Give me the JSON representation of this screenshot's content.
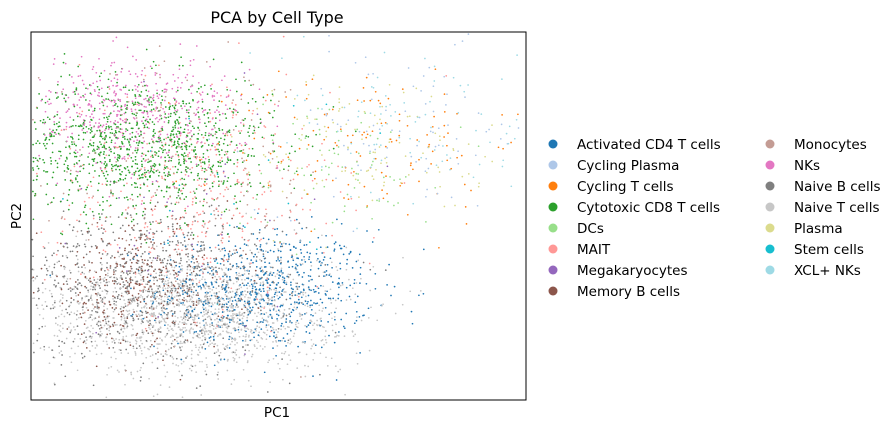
{
  "chart_data": {
    "type": "scatter",
    "title": "PCA by Cell Type",
    "xlabel": "PC1",
    "ylabel": "PC2",
    "xticks": [],
    "yticks": [],
    "xlim": [
      -6,
      8
    ],
    "ylim": [
      -6,
      5
    ],
    "grid": false,
    "legend_position": "right",
    "legend_columns": 2,
    "series": [
      {
        "name": "Activated CD4 T cells",
        "color": "#1f77b4",
        "clusters": [
          {
            "x": 0.6,
            "y": -2.7,
            "sx": 1.5,
            "sy": 0.9,
            "n": 700
          }
        ]
      },
      {
        "name": "Cycling Plasma",
        "color": "#aec7e8",
        "clusters": [
          {
            "x": 4.5,
            "y": 2.0,
            "sx": 2.0,
            "sy": 1.2,
            "n": 90
          }
        ]
      },
      {
        "name": "Cycling T cells",
        "color": "#ff7f0e",
        "clusters": [
          {
            "x": 3.5,
            "y": 1.7,
            "sx": 2.2,
            "sy": 1.2,
            "n": 130
          }
        ]
      },
      {
        "name": "Cytotoxic CD8 T cells",
        "color": "#2ca02c",
        "clusters": [
          {
            "x": -2.9,
            "y": 1.6,
            "sx": 1.9,
            "sy": 1.0,
            "n": 1100
          }
        ]
      },
      {
        "name": "DCs",
        "color": "#98df8a",
        "clusters": [
          {
            "x": 2.5,
            "y": 1.0,
            "sx": 1.5,
            "sy": 1.0,
            "n": 80
          }
        ]
      },
      {
        "name": "MAIT",
        "color": "#ff9896",
        "clusters": [
          {
            "x": -1.5,
            "y": 0.2,
            "sx": 2.0,
            "sy": 1.6,
            "n": 420
          }
        ]
      },
      {
        "name": "Megakaryocytes",
        "color": "#9467bd",
        "clusters": [
          {
            "x": -1.5,
            "y": -0.5,
            "sx": 2.5,
            "sy": 2.0,
            "n": 40
          }
        ]
      },
      {
        "name": "Memory B cells",
        "color": "#8c564b",
        "clusters": [
          {
            "x": -3.0,
            "y": -2.6,
            "sx": 1.4,
            "sy": 0.9,
            "n": 330
          }
        ]
      },
      {
        "name": "Monocytes",
        "color": "#c49c94",
        "clusters": [
          {
            "x": -2.0,
            "y": 0.5,
            "sx": 2.2,
            "sy": 1.7,
            "n": 200
          }
        ]
      },
      {
        "name": "NKs",
        "color": "#e377c2",
        "clusters": [
          {
            "x": -3.2,
            "y": 2.6,
            "sx": 1.6,
            "sy": 0.8,
            "n": 500
          }
        ]
      },
      {
        "name": "Naive B cells",
        "color": "#7f7f7f",
        "clusters": [
          {
            "x": -2.5,
            "y": -2.5,
            "sx": 2.0,
            "sy": 1.1,
            "n": 850
          }
        ]
      },
      {
        "name": "Naive T cells",
        "color": "#c7c7c7",
        "clusters": [
          {
            "x": -1.5,
            "y": -3.4,
            "sx": 2.2,
            "sy": 0.9,
            "n": 1500
          }
        ]
      },
      {
        "name": "Plasma",
        "color": "#dbdb8d",
        "clusters": [
          {
            "x": 3.8,
            "y": 1.6,
            "sx": 2.0,
            "sy": 1.1,
            "n": 110
          }
        ]
      },
      {
        "name": "Stem cells",
        "color": "#17becf",
        "clusters": [
          {
            "x": 0.0,
            "y": 0.0,
            "sx": 2.5,
            "sy": 2.0,
            "n": 20
          }
        ]
      },
      {
        "name": "XCL+ NKs",
        "color": "#9edae5",
        "clusters": [
          {
            "x": 5.0,
            "y": 2.2,
            "sx": 2.0,
            "sy": 1.2,
            "n": 90
          }
        ]
      }
    ]
  }
}
